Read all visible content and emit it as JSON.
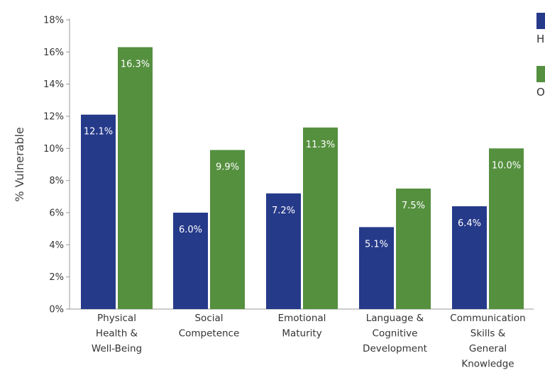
{
  "chart_data": {
    "type": "bar",
    "ylabel": "% Vulnerable",
    "ylim": [
      0,
      18
    ],
    "yticks": [
      0,
      2,
      4,
      6,
      8,
      10,
      12,
      14,
      16,
      18
    ],
    "tick_suffix": "%",
    "grid": false,
    "legend_position": "top-right",
    "categories": [
      [
        "Physical",
        "Health &",
        "Well-Being"
      ],
      [
        "Social",
        "Competence"
      ],
      [
        "Emotional",
        "Maturity"
      ],
      [
        "Language &",
        "Cognitive",
        "Development"
      ],
      [
        "Communication",
        "Skills &",
        "General",
        "Knowledge"
      ]
    ],
    "series": [
      {
        "name": "H",
        "color": "#263a8a",
        "values": [
          12.1,
          6.0,
          7.2,
          5.1,
          6.4
        ],
        "labels": [
          "12.1%",
          "6.0%",
          "7.2%",
          "5.1%",
          "6.4%"
        ]
      },
      {
        "name": "O",
        "color": "#55903f",
        "values": [
          16.3,
          9.9,
          11.3,
          7.5,
          10.0
        ],
        "labels": [
          "16.3%",
          "9.9%",
          "11.3%",
          "7.5%",
          "10.0%"
        ]
      }
    ]
  }
}
